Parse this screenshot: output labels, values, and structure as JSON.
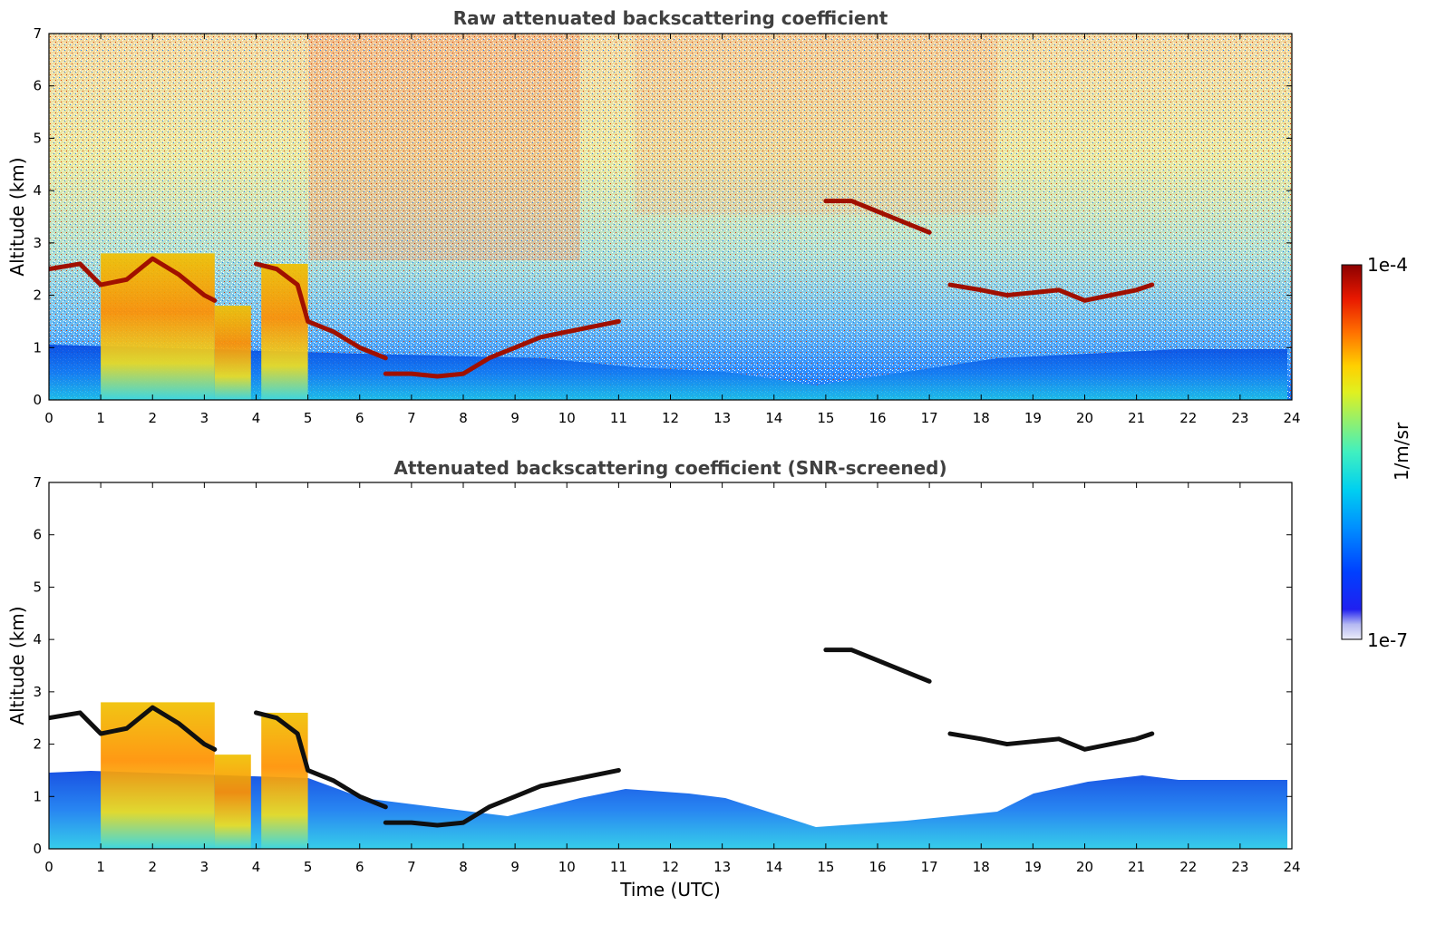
{
  "chart_data": [
    {
      "type": "heatmap",
      "title": "Raw attenuated backscattering coefficient",
      "ylabel": "Altitude (km)",
      "xlabel": "",
      "xlim": [
        0,
        24
      ],
      "ylim": [
        0,
        7
      ],
      "x_ticks": [
        "0",
        "1",
        "2",
        "3",
        "4",
        "5",
        "6",
        "7",
        "8",
        "9",
        "10",
        "11",
        "12",
        "13",
        "14",
        "15",
        "16",
        "17",
        "18",
        "19",
        "20",
        "21",
        "22",
        "23",
        "24"
      ],
      "y_ticks": [
        "0",
        "1",
        "2",
        "3",
        "4",
        "5",
        "6",
        "7"
      ],
      "features": [
        {
          "kind": "cloud_layer",
          "x": [
            0.0,
            0.6,
            1.0,
            1.5,
            2.0,
            2.5,
            3.0,
            3.2
          ],
          "y": [
            2.5,
            2.6,
            2.2,
            2.3,
            2.7,
            2.4,
            2.0,
            1.9
          ]
        },
        {
          "kind": "cloud_layer",
          "x": [
            4.0,
            4.4,
            4.8,
            5.0,
            5.5,
            6.0,
            6.5
          ],
          "y": [
            2.6,
            2.5,
            2.2,
            1.5,
            1.3,
            1.0,
            0.8
          ]
        },
        {
          "kind": "cloud_layer",
          "x": [
            6.5,
            7.0,
            7.5,
            8.0,
            8.5,
            9.0,
            9.5,
            10.0,
            10.5,
            11.0
          ],
          "y": [
            0.5,
            0.5,
            0.45,
            0.5,
            0.8,
            1.0,
            1.2,
            1.3,
            1.4,
            1.5
          ]
        },
        {
          "kind": "cloud_layer",
          "x": [
            15.0,
            15.5,
            16.0,
            16.5,
            17.0
          ],
          "y": [
            3.8,
            3.8,
            3.6,
            3.4,
            3.2
          ]
        },
        {
          "kind": "cloud_layer",
          "x": [
            17.4,
            18.0,
            18.5,
            19.0,
            19.5,
            20.0,
            20.5,
            21.0,
            21.3
          ],
          "y": [
            2.2,
            2.1,
            2.0,
            2.05,
            2.1,
            1.9,
            2.0,
            2.1,
            2.2
          ]
        },
        {
          "kind": "precip_column",
          "x": [
            1.0,
            3.2
          ],
          "top": 2.8
        },
        {
          "kind": "precip_column",
          "x": [
            3.2,
            3.9
          ],
          "top": 1.8
        },
        {
          "kind": "precip_column",
          "x": [
            4.1,
            5.0
          ],
          "top": 2.6
        }
      ]
    },
    {
      "type": "heatmap",
      "title": "Attenuated backscattering coefficient (SNR-screened)",
      "ylabel": "Altitude (km)",
      "xlabel": "Time (UTC)",
      "xlim": [
        0,
        24
      ],
      "ylim": [
        0,
        7
      ],
      "x_ticks": [
        "0",
        "1",
        "2",
        "3",
        "4",
        "5",
        "6",
        "7",
        "8",
        "9",
        "10",
        "11",
        "12",
        "13",
        "14",
        "15",
        "16",
        "17",
        "18",
        "19",
        "20",
        "21",
        "22",
        "23",
        "24"
      ],
      "y_ticks": [
        "0",
        "1",
        "2",
        "3",
        "4",
        "5",
        "6",
        "7"
      ]
    }
  ],
  "colorbar": {
    "max_label": "1e-4",
    "min_label": "1e-7",
    "label": "1/m/sr",
    "colors": [
      "#e8e8f8",
      "#b8b8f0",
      "#8080f0",
      "#0000e8",
      "#0040ff",
      "#0080ff",
      "#00b8ff",
      "#20e0e0",
      "#60f0a0",
      "#b0f050",
      "#f0f000",
      "#ffb000",
      "#ff6000",
      "#e81000",
      "#a00000"
    ]
  }
}
